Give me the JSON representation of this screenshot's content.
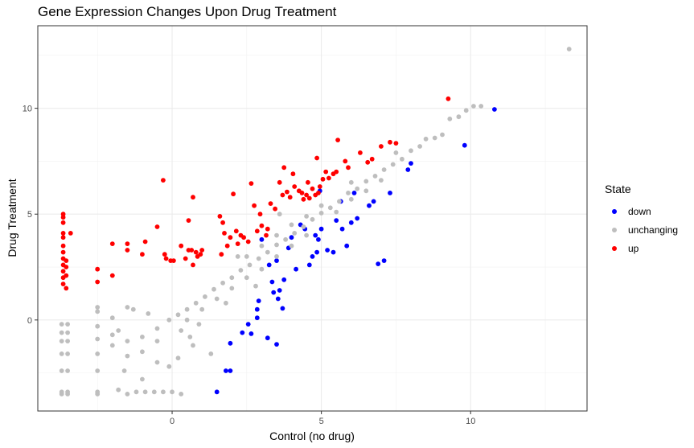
{
  "chart_data": {
    "type": "scatter",
    "title": "Gene Expression Changes Upon Drug Treatment",
    "xlabel": "Control (no drug)",
    "ylabel": "Drug Treatment",
    "xlim": [
      -4.5,
      13.9
    ],
    "ylim": [
      -4.3,
      13.9
    ],
    "x_ticks": [
      0,
      5,
      10
    ],
    "y_ticks": [
      0,
      5,
      10
    ],
    "grid": true,
    "legend_title": "State",
    "legend_position": "right",
    "series": [
      {
        "name": "down",
        "color": "#0000ff",
        "points": [
          [
            10.8,
            9.95
          ],
          [
            9.8,
            8.25
          ],
          [
            8.0,
            7.4
          ],
          [
            7.9,
            7.1
          ],
          [
            7.3,
            6.0
          ],
          [
            7.1,
            2.8
          ],
          [
            6.9,
            2.65
          ],
          [
            6.75,
            5.6
          ],
          [
            6.6,
            5.4
          ],
          [
            6.2,
            4.8
          ],
          [
            6.1,
            6.0
          ],
          [
            6.0,
            4.6
          ],
          [
            5.85,
            3.5
          ],
          [
            5.7,
            4.3
          ],
          [
            5.65,
            5.6
          ],
          [
            5.5,
            4.7
          ],
          [
            5.4,
            3.2
          ],
          [
            5.2,
            3.3
          ],
          [
            5.0,
            4.3
          ],
          [
            4.95,
            6.1
          ],
          [
            4.9,
            3.8
          ],
          [
            4.85,
            3.2
          ],
          [
            4.8,
            4.0
          ],
          [
            4.7,
            3.0
          ],
          [
            4.6,
            2.6
          ],
          [
            4.45,
            4.3
          ],
          [
            4.3,
            4.5
          ],
          [
            4.15,
            2.4
          ],
          [
            4.0,
            3.9
          ],
          [
            3.9,
            3.4
          ],
          [
            3.75,
            1.9
          ],
          [
            3.7,
            0.55
          ],
          [
            3.6,
            1.4
          ],
          [
            3.55,
            1.0
          ],
          [
            3.5,
            2.8
          ],
          [
            3.5,
            -1.15
          ],
          [
            3.4,
            1.3
          ],
          [
            3.35,
            1.8
          ],
          [
            3.25,
            2.6
          ],
          [
            3.2,
            -0.85
          ],
          [
            3.0,
            3.8
          ],
          [
            2.9,
            0.9
          ],
          [
            2.85,
            0.1
          ],
          [
            2.85,
            0.5
          ],
          [
            2.65,
            -0.65
          ],
          [
            2.55,
            -0.2
          ],
          [
            2.35,
            -0.6
          ],
          [
            1.95,
            -2.4
          ],
          [
            1.8,
            -2.4
          ],
          [
            1.95,
            -1.1
          ],
          [
            1.5,
            -3.4
          ]
        ]
      },
      {
        "name": "unchanging",
        "color": "#bebebe",
        "points": [
          [
            13.3,
            12.8
          ],
          [
            10.35,
            10.1
          ],
          [
            10.1,
            10.1
          ],
          [
            9.85,
            9.9
          ],
          [
            9.6,
            9.6
          ],
          [
            9.3,
            9.5
          ],
          [
            9.05,
            8.75
          ],
          [
            8.8,
            8.6
          ],
          [
            8.5,
            8.55
          ],
          [
            8.3,
            8.2
          ],
          [
            8.0,
            8.0
          ],
          [
            7.7,
            7.6
          ],
          [
            7.4,
            7.35
          ],
          [
            7.1,
            7.1
          ],
          [
            6.8,
            6.8
          ],
          [
            6.5,
            6.55
          ],
          [
            6.2,
            6.2
          ],
          [
            5.9,
            6.0
          ],
          [
            5.6,
            5.6
          ],
          [
            5.3,
            5.3
          ],
          [
            5.0,
            5.05
          ],
          [
            4.7,
            4.75
          ],
          [
            4.4,
            4.4
          ],
          [
            4.1,
            4.1
          ],
          [
            3.8,
            3.8
          ],
          [
            3.5,
            3.55
          ],
          [
            3.2,
            3.2
          ],
          [
            2.9,
            2.9
          ],
          [
            2.6,
            2.6
          ],
          [
            2.3,
            2.35
          ],
          [
            2.0,
            2.0
          ],
          [
            1.7,
            1.75
          ],
          [
            1.4,
            1.45
          ],
          [
            1.1,
            1.1
          ],
          [
            0.8,
            0.8
          ],
          [
            0.5,
            0.5
          ],
          [
            0.2,
            0.25
          ],
          [
            -0.1,
            0.0
          ],
          [
            5.0,
            5.4
          ],
          [
            4.5,
            4.9
          ],
          [
            4.0,
            4.5
          ],
          [
            3.5,
            4.0
          ],
          [
            3.0,
            3.5
          ],
          [
            2.5,
            3.0
          ],
          [
            5.5,
            5.1
          ],
          [
            6.0,
            5.7
          ],
          [
            6.5,
            6.1
          ],
          [
            7.0,
            6.6
          ],
          [
            4.5,
            4.0
          ],
          [
            4.0,
            3.5
          ],
          [
            3.5,
            3.0
          ],
          [
            3.0,
            2.4
          ],
          [
            2.5,
            2.0
          ],
          [
            2.0,
            1.5
          ],
          [
            1.5,
            1.0
          ],
          [
            1.0,
            0.5
          ],
          [
            0.5,
            0.0
          ],
          [
            7.5,
            7.9
          ],
          [
            6.0,
            6.5
          ],
          [
            3.6,
            5.0
          ],
          [
            2.2,
            3.0
          ],
          [
            2.8,
            1.6
          ],
          [
            1.8,
            0.8
          ],
          [
            0.9,
            -0.2
          ],
          [
            0.6,
            -0.8
          ],
          [
            0.3,
            -0.5
          ],
          [
            0.7,
            -1.2
          ],
          [
            1.3,
            -1.6
          ],
          [
            0.2,
            -1.8
          ],
          [
            -0.1,
            -2.2
          ],
          [
            -0.5,
            -2.0
          ],
          [
            -1.0,
            -1.5
          ],
          [
            -1.5,
            -1.0
          ],
          [
            -1.8,
            -0.5
          ],
          [
            -0.8,
            0.3
          ],
          [
            -1.3,
            0.5
          ],
          [
            -2.0,
            0.1
          ],
          [
            -2.5,
            -0.3
          ],
          [
            -1.0,
            -2.8
          ],
          [
            -1.6,
            -2.4
          ],
          [
            -1.8,
            -3.3
          ],
          [
            -1.5,
            -3.5
          ],
          [
            -1.2,
            -3.4
          ],
          [
            -0.9,
            -3.4
          ],
          [
            -0.6,
            -3.4
          ],
          [
            -0.3,
            -3.4
          ],
          [
            0.0,
            -3.4
          ],
          [
            0.3,
            -3.5
          ],
          [
            -2.5,
            -3.4
          ],
          [
            -2.5,
            -3.5
          ],
          [
            -2.5,
            -2.4
          ],
          [
            -2.5,
            -1.6
          ],
          [
            -2.5,
            -0.9
          ],
          [
            -2.5,
            0.4
          ],
          [
            -2.5,
            0.6
          ],
          [
            -2.0,
            -1.2
          ],
          [
            -2.0,
            -0.7
          ],
          [
            -1.5,
            0.6
          ],
          [
            -1.5,
            -1.7
          ],
          [
            -1.0,
            -0.8
          ],
          [
            -0.5,
            -0.4
          ],
          [
            -0.5,
            -1.0
          ],
          [
            -3.5,
            -3.4
          ],
          [
            -3.5,
            -3.5
          ],
          [
            -3.5,
            -2.4
          ],
          [
            -3.5,
            -1.6
          ],
          [
            -3.5,
            -1.0
          ],
          [
            -3.5,
            -0.6
          ],
          [
            -3.5,
            -0.2
          ],
          [
            -3.7,
            -3.4
          ],
          [
            -3.7,
            -3.5
          ],
          [
            -3.7,
            -2.4
          ],
          [
            -3.7,
            -1.6
          ],
          [
            -3.7,
            -1.0
          ],
          [
            -3.7,
            -0.6
          ],
          [
            -3.7,
            -0.2
          ]
        ]
      },
      {
        "name": "up",
        "color": "#ff0000",
        "points": [
          [
            9.25,
            10.45
          ],
          [
            7.5,
            8.35
          ],
          [
            7.3,
            8.4
          ],
          [
            7.0,
            8.2
          ],
          [
            6.7,
            7.6
          ],
          [
            6.55,
            7.45
          ],
          [
            6.3,
            7.9
          ],
          [
            5.9,
            7.2
          ],
          [
            5.8,
            7.5
          ],
          [
            5.55,
            8.5
          ],
          [
            5.5,
            7.0
          ],
          [
            5.4,
            6.9
          ],
          [
            5.25,
            6.7
          ],
          [
            5.15,
            7.0
          ],
          [
            5.05,
            6.65
          ],
          [
            4.95,
            6.3
          ],
          [
            4.9,
            6.0
          ],
          [
            4.85,
            7.65
          ],
          [
            4.8,
            5.9
          ],
          [
            4.7,
            6.2
          ],
          [
            4.6,
            5.75
          ],
          [
            4.55,
            6.5
          ],
          [
            4.5,
            5.9
          ],
          [
            4.4,
            5.7
          ],
          [
            4.35,
            6.0
          ],
          [
            4.25,
            6.1
          ],
          [
            4.1,
            6.3
          ],
          [
            4.05,
            6.9
          ],
          [
            3.95,
            5.8
          ],
          [
            3.85,
            6.05
          ],
          [
            3.75,
            7.2
          ],
          [
            3.7,
            5.9
          ],
          [
            3.6,
            6.5
          ],
          [
            3.45,
            5.25
          ],
          [
            3.3,
            5.5
          ],
          [
            3.2,
            4.3
          ],
          [
            3.15,
            4.0
          ],
          [
            3.0,
            4.45
          ],
          [
            2.95,
            5.0
          ],
          [
            2.85,
            4.2
          ],
          [
            2.75,
            5.4
          ],
          [
            2.65,
            6.45
          ],
          [
            2.55,
            3.7
          ],
          [
            2.4,
            3.9
          ],
          [
            2.3,
            4.0
          ],
          [
            2.2,
            3.6
          ],
          [
            2.15,
            4.2
          ],
          [
            2.05,
            5.95
          ],
          [
            1.95,
            3.9
          ],
          [
            1.85,
            3.5
          ],
          [
            1.75,
            4.1
          ],
          [
            1.7,
            4.6
          ],
          [
            1.65,
            3.1
          ],
          [
            1.6,
            4.9
          ],
          [
            1.0,
            3.3
          ],
          [
            0.95,
            3.1
          ],
          [
            0.85,
            3.0
          ],
          [
            0.8,
            3.2
          ],
          [
            0.7,
            2.6
          ],
          [
            0.65,
            3.3
          ],
          [
            0.55,
            3.3
          ],
          [
            0.45,
            2.9
          ],
          [
            0.3,
            3.5
          ],
          [
            0.7,
            5.8
          ],
          [
            0.55,
            4.7
          ],
          [
            0.05,
            2.8
          ],
          [
            -0.05,
            2.8
          ],
          [
            -0.2,
            2.9
          ],
          [
            -0.25,
            3.1
          ],
          [
            -0.3,
            6.6
          ],
          [
            -0.5,
            4.4
          ],
          [
            -1.0,
            3.1
          ],
          [
            -0.9,
            3.7
          ],
          [
            -1.5,
            3.6
          ],
          [
            -1.5,
            3.3
          ],
          [
            -2.0,
            2.1
          ],
          [
            -2.0,
            3.6
          ],
          [
            -2.5,
            1.8
          ],
          [
            -2.5,
            2.4
          ],
          [
            -3.4,
            4.1
          ],
          [
            -3.65,
            1.7
          ],
          [
            -3.65,
            2.0
          ],
          [
            -3.65,
            2.3
          ],
          [
            -3.65,
            2.6
          ],
          [
            -3.65,
            2.9
          ],
          [
            -3.65,
            3.2
          ],
          [
            -3.65,
            3.5
          ],
          [
            -3.65,
            3.9
          ],
          [
            -3.65,
            4.1
          ],
          [
            -3.65,
            4.6
          ],
          [
            -3.65,
            4.85
          ],
          [
            -3.65,
            5.0
          ],
          [
            -3.55,
            1.5
          ],
          [
            -3.55,
            2.1
          ],
          [
            -3.55,
            2.5
          ],
          [
            -3.55,
            2.8
          ]
        ]
      }
    ]
  }
}
